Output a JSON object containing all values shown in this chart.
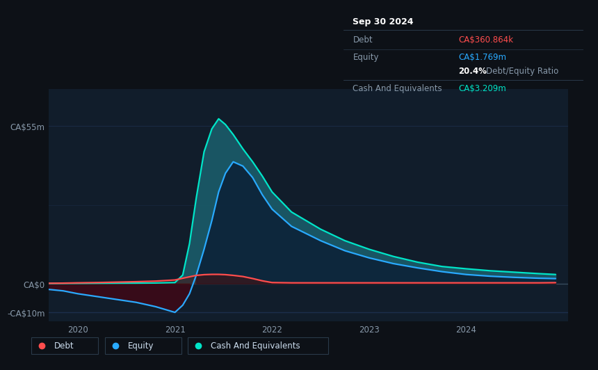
{
  "bg_color": "#0d1117",
  "plot_bg_color": "#111d2b",
  "grid_color": "#1e3050",
  "ylabel_top": "CA$55m",
  "ylabel_zero": "CA$0",
  "ylabel_neg": "-CA$10m",
  "x_ticks": [
    2020,
    2021,
    2022,
    2023,
    2024
  ],
  "y_lim": [
    -13,
    68
  ],
  "debt_color": "#ff4d4d",
  "equity_color": "#29aaff",
  "cash_color": "#00e5c8",
  "fill_cash_color": "#1a5c6a",
  "fill_equity_neg_color": "#3a0a18",
  "fill_equity_pos_color": "#0a1830",
  "debt_fill_color": "#4a1010",
  "annotation_bg": "#090d12",
  "annotation_border": "#2a3a4a",
  "legend_bg": "#0d1117",
  "legend_border": "#2a3a4a",
  "info_title": "Sep 30 2024",
  "info_debt_label": "Debt",
  "info_debt_value": "CA$360.864k",
  "info_equity_label": "Equity",
  "info_equity_value": "CA$1.769m",
  "info_ratio_bold": "20.4%",
  "info_ratio_text": "Debt/Equity Ratio",
  "info_cash_label": "Cash And Equivalents",
  "info_cash_value": "CA$3.209m",
  "legend_debt": "Debt",
  "legend_equity": "Equity",
  "legend_cash": "Cash And Equivalents",
  "time_points": [
    2019.7,
    2019.85,
    2020.0,
    2020.2,
    2020.4,
    2020.6,
    2020.8,
    2021.0,
    2021.08,
    2021.15,
    2021.22,
    2021.3,
    2021.38,
    2021.45,
    2021.52,
    2021.6,
    2021.7,
    2021.8,
    2021.9,
    2022.0,
    2022.2,
    2022.5,
    2022.75,
    2023.0,
    2023.25,
    2023.5,
    2023.75,
    2024.0,
    2024.25,
    2024.5,
    2024.75,
    2024.92
  ],
  "debt_values": [
    0.15,
    0.2,
    0.3,
    0.4,
    0.55,
    0.7,
    0.9,
    1.3,
    1.9,
    2.4,
    2.9,
    3.15,
    3.25,
    3.25,
    3.15,
    2.9,
    2.5,
    1.8,
    1.0,
    0.4,
    0.3,
    0.3,
    0.3,
    0.3,
    0.3,
    0.3,
    0.3,
    0.3,
    0.3,
    0.3,
    0.3,
    0.361
  ],
  "equity_values": [
    -2.0,
    -2.5,
    -3.5,
    -4.5,
    -5.5,
    -6.5,
    -8.0,
    -10.0,
    -7.5,
    -3.5,
    3.0,
    12.0,
    22.0,
    32.0,
    38.5,
    42.5,
    41.0,
    37.0,
    31.0,
    26.0,
    20.0,
    15.0,
    11.5,
    9.0,
    7.0,
    5.5,
    4.2,
    3.2,
    2.6,
    2.2,
    1.9,
    1.769
  ],
  "cash_values": [
    0.08,
    0.1,
    0.12,
    0.15,
    0.18,
    0.2,
    0.25,
    0.4,
    3.0,
    14.0,
    30.0,
    46.0,
    54.0,
    57.5,
    55.5,
    52.0,
    47.0,
    42.5,
    37.5,
    32.0,
    25.0,
    19.0,
    15.0,
    12.0,
    9.5,
    7.5,
    6.0,
    5.2,
    4.5,
    4.0,
    3.5,
    3.209
  ]
}
